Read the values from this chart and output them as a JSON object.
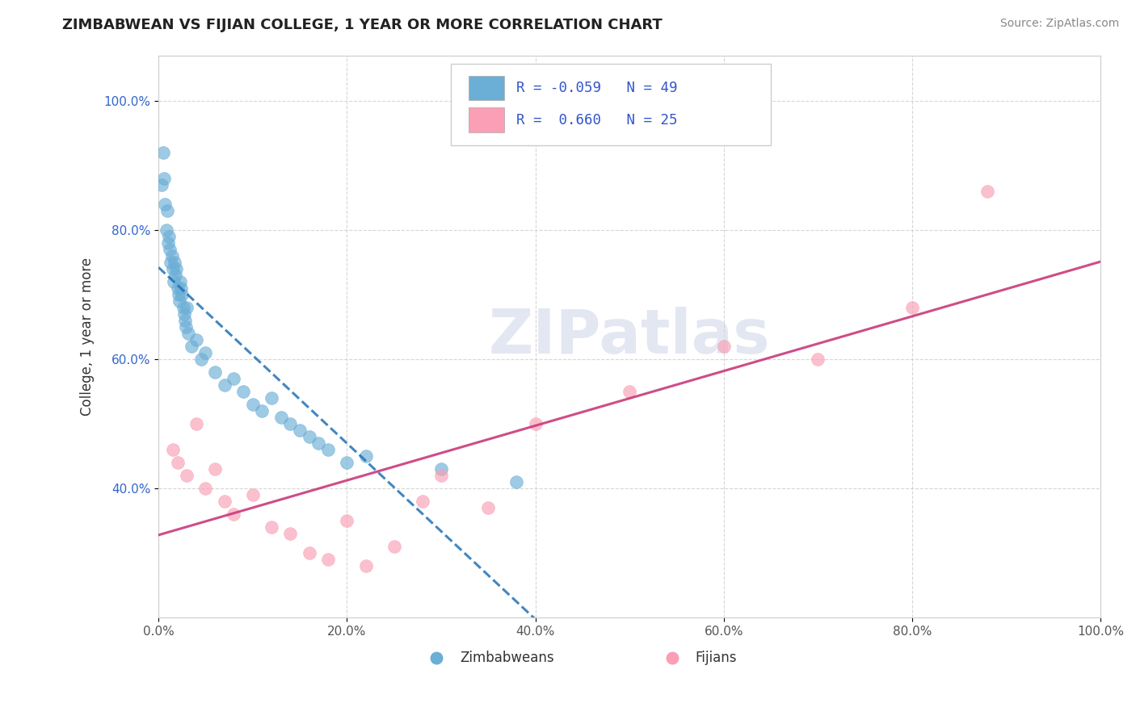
{
  "title": "ZIMBABWEAN VS FIJIAN COLLEGE, 1 YEAR OR MORE CORRELATION CHART",
  "source": "Source: ZipAtlas.com",
  "ylabel": "College, 1 year or more",
  "blue_color": "#6baed6",
  "pink_color": "#fa9fb5",
  "blue_line_color": "#2171b5",
  "pink_line_color": "#c9397a",
  "zimbabwean_x": [
    0.3,
    0.5,
    0.6,
    0.7,
    0.8,
    0.9,
    1.0,
    1.1,
    1.2,
    1.3,
    1.4,
    1.5,
    1.6,
    1.7,
    1.8,
    1.9,
    2.0,
    2.1,
    2.2,
    2.3,
    2.4,
    2.5,
    2.6,
    2.7,
    2.8,
    2.9,
    3.0,
    3.2,
    3.5,
    4.0,
    4.5,
    5.0,
    6.0,
    7.0,
    8.0,
    9.0,
    10.0,
    11.0,
    12.0,
    13.0,
    14.0,
    15.0,
    16.0,
    17.0,
    18.0,
    20.0,
    22.0,
    30.0,
    38.0
  ],
  "zimbabwean_y": [
    87,
    92,
    88,
    84,
    80,
    83,
    78,
    79,
    77,
    75,
    76,
    74,
    72,
    75,
    73,
    74,
    71,
    70,
    69,
    72,
    71,
    70,
    68,
    67,
    66,
    65,
    68,
    64,
    62,
    63,
    60,
    61,
    58,
    56,
    57,
    55,
    53,
    52,
    54,
    51,
    50,
    49,
    48,
    47,
    46,
    44,
    45,
    43,
    41
  ],
  "fijian_x": [
    1.5,
    2.0,
    3.0,
    4.0,
    5.0,
    6.0,
    7.0,
    8.0,
    10.0,
    12.0,
    14.0,
    16.0,
    18.0,
    20.0,
    22.0,
    25.0,
    28.0,
    30.0,
    35.0,
    40.0,
    50.0,
    60.0,
    70.0,
    80.0,
    88.0
  ],
  "fijian_y": [
    46,
    44,
    42,
    50,
    40,
    43,
    38,
    36,
    39,
    34,
    33,
    30,
    29,
    35,
    28,
    31,
    38,
    42,
    37,
    50,
    55,
    62,
    60,
    68,
    86
  ]
}
